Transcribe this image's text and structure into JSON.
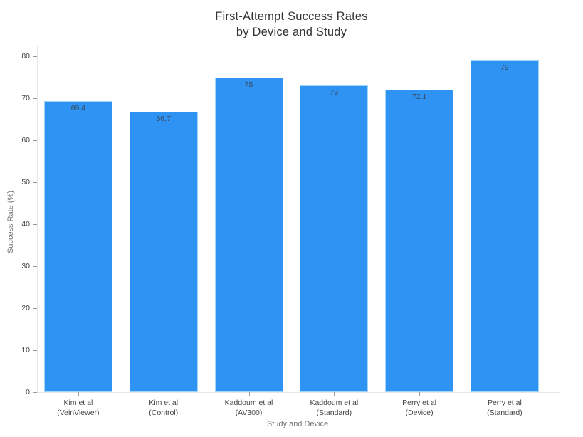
{
  "chart_data": {
    "type": "bar",
    "title": "First-Attempt Success Rates by Device and Study",
    "title_lines": [
      "First-Attempt Success Rates",
      "by Device and Study"
    ],
    "xlabel": "Study and Device",
    "ylabel": "Success Rate (%)",
    "categories": [
      "Kim et al\n(VeinViewer)",
      "Kim et al\n(Control)",
      "Kaddoum et al\n(AV300)",
      "Kaddoum et al\n(Standard)",
      "Perry et al\n(Device)",
      "Perry et al\n(Standard)"
    ],
    "values": [
      69.4,
      66.7,
      75,
      73,
      72.1,
      79
    ],
    "value_labels": [
      "69.4",
      "66.7",
      "75",
      "73",
      "72.1",
      "79"
    ],
    "ylim": [
      0,
      80
    ],
    "yticks": [
      0,
      10,
      20,
      30,
      40,
      50,
      60,
      70,
      80
    ],
    "grid": false,
    "legend": "none",
    "value_label_position": "inside-top",
    "colors": {
      "bar_fill": "#2e93f2",
      "bar_border": "#9fd4fb",
      "value_label": "#3a4a5c",
      "tick_label": "#444444",
      "axis_title": "#757575",
      "title": "#333333",
      "axis_line": "#e6e6e6",
      "tick_mark": "#999999",
      "background": "#ffffff"
    }
  }
}
